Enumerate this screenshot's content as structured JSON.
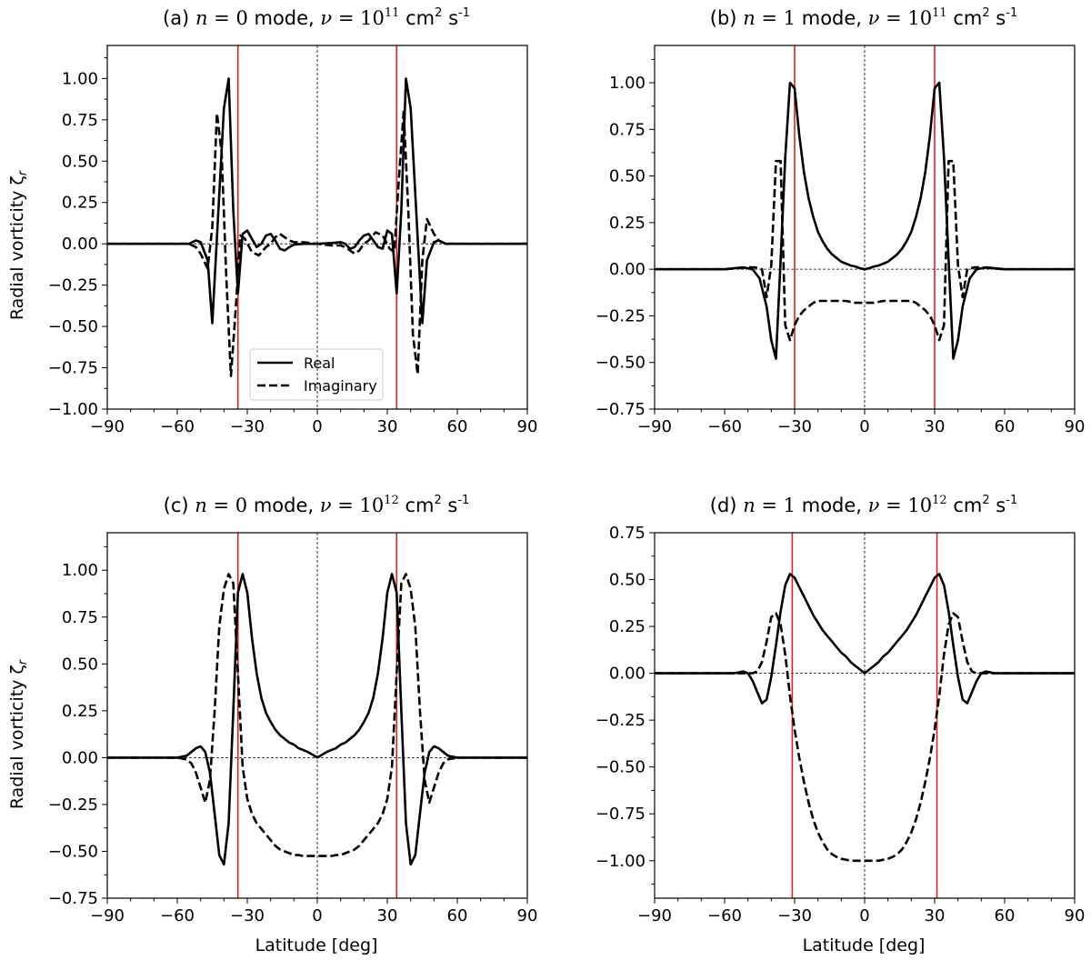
{
  "figure": {
    "xlabel": "Latitude [deg]",
    "ylabel": "Radial vorticity ζ",
    "ylabel_sub": "r",
    "legend": {
      "real": "Real",
      "imaginary": "Imaginary",
      "placement": "lower-center of panel (a)"
    },
    "colors": {
      "real": "#000000",
      "imaginary": "#000000",
      "critical_latitude": "#e0201b",
      "reference": "#000000"
    }
  },
  "chart_data": [
    {
      "type": "line",
      "panel_label": "(a)",
      "title": "(a) n = 0 mode, ν = 10^11 cm^2 s^-1",
      "title_parts": {
        "label": "(a)",
        "n": "0",
        "mode": "mode,",
        "nu_exp": "11"
      },
      "xlabel": "",
      "ylabel": "Radial vorticity ζr",
      "xlim": [
        -90,
        90
      ],
      "ylim": [
        -1.0,
        1.2
      ],
      "xticks": [
        -90,
        -60,
        -30,
        0,
        30,
        60,
        90
      ],
      "yticks": [
        -1.0,
        -0.75,
        -0.5,
        -0.25,
        0.0,
        0.25,
        0.5,
        0.75,
        1.0
      ],
      "ytick_labels": [
        "−1.00",
        "−0.75",
        "−0.50",
        "−0.25",
        "0.00",
        "0.25",
        "0.50",
        "0.75",
        "1.00"
      ],
      "vlines": [
        -34,
        34
      ],
      "series": [
        {
          "name": "Real",
          "style": "solid",
          "x": [
            -90,
            -60,
            -55,
            -52,
            -50,
            -47,
            -45,
            -42,
            -40,
            -38,
            -36,
            -34,
            -32,
            -30,
            -28,
            -26,
            -24,
            -22,
            -20,
            -18,
            -16,
            -14,
            -12,
            -10,
            -6,
            0,
            6,
            10,
            12,
            14,
            16,
            18,
            20,
            22,
            24,
            26,
            28,
            30,
            32,
            34,
            36,
            38,
            40,
            42,
            45,
            47,
            50,
            52,
            55,
            60,
            90
          ],
          "y": [
            0,
            0,
            0.0,
            0.02,
            0.01,
            -0.1,
            -0.48,
            0.3,
            0.82,
            1.0,
            0.2,
            -0.3,
            0.06,
            0.08,
            0.03,
            -0.02,
            0.0,
            0.05,
            0.06,
            0.02,
            -0.03,
            -0.04,
            -0.02,
            -0.005,
            0.0,
            0.0,
            0.005,
            0.01,
            0.0,
            -0.03,
            -0.02,
            0.02,
            0.05,
            0.06,
            0.02,
            -0.02,
            -0.03,
            0.08,
            0.06,
            -0.3,
            0.2,
            1.0,
            0.82,
            0.3,
            -0.48,
            -0.1,
            0.01,
            0.02,
            0.0,
            0,
            0
          ]
        },
        {
          "name": "Imaginary",
          "style": "dashed",
          "x": [
            -90,
            -60,
            -55,
            -52,
            -50,
            -47,
            -45,
            -43,
            -41,
            -39,
            -37,
            -35,
            -33,
            -31,
            -28,
            -25,
            -22,
            -20,
            -18,
            -16,
            -14,
            -12,
            -10,
            -6,
            0,
            6,
            10,
            12,
            14,
            16,
            18,
            20,
            22,
            25,
            28,
            31,
            33,
            35,
            37,
            39,
            41,
            43,
            45,
            47,
            50,
            52,
            55,
            60,
            90
          ],
          "y": [
            0,
            0,
            0.0,
            -0.02,
            -0.06,
            -0.15,
            0.1,
            0.79,
            0.55,
            -0.2,
            -0.8,
            -0.4,
            0.05,
            0.03,
            -0.05,
            -0.07,
            -0.02,
            0.0,
            0.04,
            0.06,
            0.04,
            0.02,
            0.01,
            0.01,
            0.0,
            -0.01,
            -0.01,
            -0.02,
            -0.04,
            -0.06,
            -0.04,
            0.0,
            0.02,
            0.07,
            0.05,
            -0.03,
            -0.05,
            0.4,
            0.8,
            0.2,
            -0.55,
            -0.79,
            -0.1,
            0.15,
            0.06,
            0.02,
            0.0,
            0,
            0
          ]
        }
      ]
    },
    {
      "type": "line",
      "panel_label": "(b)",
      "title": "(b) n = 1 mode, ν = 10^11 cm^2 s^-1",
      "title_parts": {
        "label": "(b)",
        "n": "1",
        "mode": "mode,",
        "nu_exp": "11"
      },
      "xlabel": "",
      "ylabel": "",
      "xlim": [
        -90,
        90
      ],
      "ylim": [
        -0.75,
        1.2
      ],
      "xticks": [
        -90,
        -60,
        -30,
        0,
        30,
        60,
        90
      ],
      "yticks": [
        -0.75,
        -0.5,
        -0.25,
        0.0,
        0.25,
        0.5,
        0.75,
        1.0
      ],
      "ytick_labels": [
        "−0.75",
        "−0.50",
        "−0.25",
        "0.00",
        "0.25",
        "0.50",
        "0.75",
        "1.00"
      ],
      "vlines": [
        -30,
        30
      ],
      "series": [
        {
          "name": "Real",
          "style": "solid",
          "x": [
            -90,
            -60,
            -52,
            -48,
            -45,
            -42,
            -40,
            -38,
            -36,
            -34,
            -32,
            -30,
            -28,
            -26,
            -24,
            -22,
            -20,
            -18,
            -16,
            -14,
            -12,
            -10,
            -8,
            -6,
            -4,
            -2,
            0,
            2,
            4,
            6,
            8,
            10,
            12,
            14,
            16,
            18,
            20,
            22,
            24,
            26,
            28,
            30,
            32,
            34,
            36,
            38,
            40,
            42,
            45,
            48,
            52,
            60,
            90
          ],
          "y": [
            0,
            0,
            0.01,
            0.0,
            -0.05,
            -0.2,
            -0.38,
            -0.48,
            0.05,
            0.6,
            1.0,
            0.97,
            0.72,
            0.52,
            0.38,
            0.28,
            0.2,
            0.15,
            0.11,
            0.08,
            0.06,
            0.04,
            0.03,
            0.02,
            0.015,
            0.005,
            0.0,
            0.005,
            0.015,
            0.02,
            0.03,
            0.04,
            0.06,
            0.08,
            0.11,
            0.15,
            0.2,
            0.28,
            0.38,
            0.52,
            0.72,
            0.97,
            1.0,
            0.6,
            0.05,
            -0.48,
            -0.38,
            -0.2,
            -0.05,
            0.0,
            0.01,
            0,
            0
          ]
        },
        {
          "name": "Imaginary",
          "style": "dashed",
          "x": [
            -90,
            -60,
            -50,
            -47,
            -44,
            -42,
            -40,
            -38,
            -36,
            -34,
            -32,
            -30,
            -28,
            -26,
            -24,
            -22,
            -20,
            -16,
            -12,
            -8,
            -4,
            0,
            4,
            8,
            12,
            16,
            20,
            22,
            24,
            26,
            28,
            30,
            32,
            34,
            36,
            38,
            40,
            42,
            44,
            47,
            50,
            60,
            90
          ],
          "y": [
            0,
            0,
            0.01,
            0.01,
            0.0,
            -0.15,
            0.02,
            0.58,
            0.58,
            -0.3,
            -0.38,
            -0.3,
            -0.25,
            -0.22,
            -0.2,
            -0.18,
            -0.17,
            -0.17,
            -0.17,
            -0.17,
            -0.18,
            -0.18,
            -0.18,
            -0.17,
            -0.17,
            -0.17,
            -0.17,
            -0.18,
            -0.2,
            -0.22,
            -0.25,
            -0.3,
            -0.38,
            -0.3,
            0.58,
            0.58,
            0.02,
            -0.15,
            0.0,
            0.01,
            0.01,
            0,
            0
          ]
        }
      ]
    },
    {
      "type": "line",
      "panel_label": "(c)",
      "title": "(c) n = 0 mode, ν = 10^12 cm^2 s^-1",
      "title_parts": {
        "label": "(c)",
        "n": "0",
        "mode": "mode,",
        "nu_exp": "12"
      },
      "xlabel": "Latitude [deg]",
      "ylabel": "Radial vorticity ζr",
      "xlim": [
        -90,
        90
      ],
      "ylim": [
        -0.75,
        1.2
      ],
      "xticks": [
        -90,
        -60,
        -30,
        0,
        30,
        60,
        90
      ],
      "yticks": [
        -0.75,
        -0.5,
        -0.25,
        0.0,
        0.25,
        0.5,
        0.75,
        1.0
      ],
      "ytick_labels": [
        "−0.75",
        "−0.50",
        "−0.25",
        "0.00",
        "0.25",
        "0.50",
        "0.75",
        "1.00"
      ],
      "vlines": [
        -34,
        34
      ],
      "series": [
        {
          "name": "Real",
          "style": "solid",
          "x": [
            -90,
            -60,
            -56,
            -54,
            -52,
            -50,
            -48,
            -46,
            -44,
            -42,
            -40,
            -38,
            -36,
            -34,
            -32,
            -30,
            -28,
            -26,
            -24,
            -22,
            -20,
            -18,
            -16,
            -14,
            -12,
            -10,
            -8,
            -6,
            -4,
            -2,
            0,
            2,
            4,
            6,
            8,
            10,
            12,
            14,
            16,
            18,
            20,
            22,
            24,
            26,
            28,
            30,
            32,
            34,
            36,
            38,
            40,
            42,
            44,
            46,
            48,
            50,
            52,
            54,
            56,
            60,
            90
          ],
          "y": [
            0,
            0,
            0.01,
            0.03,
            0.05,
            0.06,
            0.03,
            -0.08,
            -0.3,
            -0.52,
            -0.57,
            -0.35,
            0.25,
            0.88,
            0.98,
            0.88,
            0.64,
            0.45,
            0.32,
            0.24,
            0.19,
            0.15,
            0.12,
            0.1,
            0.08,
            0.07,
            0.05,
            0.04,
            0.03,
            0.015,
            0.0,
            0.015,
            0.03,
            0.04,
            0.05,
            0.07,
            0.08,
            0.1,
            0.12,
            0.15,
            0.19,
            0.24,
            0.32,
            0.45,
            0.64,
            0.88,
            0.98,
            0.88,
            0.25,
            -0.35,
            -0.57,
            -0.52,
            -0.3,
            -0.08,
            0.03,
            0.06,
            0.05,
            0.03,
            0.01,
            0,
            0
          ]
        },
        {
          "name": "Imaginary",
          "style": "dashed",
          "x": [
            -90,
            -60,
            -56,
            -54,
            -52,
            -50,
            -48,
            -46,
            -44,
            -42,
            -40,
            -38,
            -36,
            -34,
            -32,
            -30,
            -28,
            -26,
            -24,
            -22,
            -20,
            -18,
            -16,
            -14,
            -12,
            -10,
            -8,
            -6,
            -4,
            -2,
            0,
            2,
            4,
            6,
            8,
            10,
            12,
            14,
            16,
            18,
            20,
            22,
            24,
            26,
            28,
            30,
            32,
            34,
            36,
            38,
            40,
            42,
            44,
            46,
            48,
            50,
            52,
            54,
            56,
            60,
            90
          ],
          "y": [
            0,
            0,
            -0.01,
            -0.03,
            -0.08,
            -0.16,
            -0.24,
            -0.12,
            0.25,
            0.7,
            0.9,
            0.98,
            0.93,
            0.45,
            -0.05,
            -0.22,
            -0.3,
            -0.35,
            -0.38,
            -0.41,
            -0.44,
            -0.47,
            -0.49,
            -0.5,
            -0.51,
            -0.52,
            -0.52,
            -0.525,
            -0.525,
            -0.525,
            -0.525,
            -0.525,
            -0.525,
            -0.525,
            -0.52,
            -0.52,
            -0.51,
            -0.5,
            -0.49,
            -0.47,
            -0.44,
            -0.41,
            -0.38,
            -0.35,
            -0.3,
            -0.22,
            -0.05,
            0.45,
            0.93,
            0.98,
            0.9,
            0.7,
            0.25,
            -0.12,
            -0.24,
            -0.16,
            -0.08,
            -0.03,
            -0.01,
            0,
            0
          ]
        }
      ]
    },
    {
      "type": "line",
      "panel_label": "(d)",
      "title": "(d) n = 1 mode, ν = 10^12 cm^2 s^-1",
      "title_parts": {
        "label": "(d)",
        "n": "1",
        "mode": "mode,",
        "nu_exp": "12"
      },
      "xlabel": "Latitude [deg]",
      "ylabel": "",
      "xlim": [
        -90,
        90
      ],
      "ylim": [
        -1.2,
        0.75
      ],
      "xticks": [
        -90,
        -60,
        -30,
        0,
        30,
        60,
        90
      ],
      "yticks": [
        -1.0,
        -0.75,
        -0.5,
        -0.25,
        0.0,
        0.25,
        0.5,
        0.75
      ],
      "ytick_labels": [
        "−1.00",
        "−0.75",
        "−0.50",
        "−0.25",
        "0.00",
        "0.25",
        "0.50",
        "0.75"
      ],
      "vlines": [
        -31,
        31
      ],
      "series": [
        {
          "name": "Real",
          "style": "solid",
          "x": [
            -90,
            -60,
            -56,
            -52,
            -50,
            -48,
            -46,
            -44,
            -42,
            -40,
            -38,
            -36,
            -34,
            -32,
            -30,
            -28,
            -26,
            -24,
            -22,
            -20,
            -18,
            -16,
            -14,
            -12,
            -10,
            -8,
            -6,
            -4,
            -2,
            0,
            2,
            4,
            6,
            8,
            10,
            12,
            14,
            16,
            18,
            20,
            22,
            24,
            26,
            28,
            30,
            32,
            34,
            36,
            38,
            40,
            42,
            44,
            46,
            48,
            50,
            52,
            56,
            60,
            90
          ],
          "y": [
            0,
            0,
            0.0,
            0.01,
            0.0,
            -0.04,
            -0.1,
            -0.16,
            -0.14,
            -0.02,
            0.15,
            0.33,
            0.47,
            0.53,
            0.51,
            0.46,
            0.41,
            0.36,
            0.31,
            0.27,
            0.23,
            0.2,
            0.17,
            0.14,
            0.11,
            0.09,
            0.06,
            0.04,
            0.02,
            0.0,
            0.02,
            0.04,
            0.06,
            0.09,
            0.11,
            0.14,
            0.17,
            0.2,
            0.23,
            0.27,
            0.31,
            0.36,
            0.41,
            0.46,
            0.51,
            0.53,
            0.47,
            0.33,
            0.15,
            -0.02,
            -0.14,
            -0.16,
            -0.1,
            -0.04,
            0.0,
            0.01,
            0.0,
            0,
            0
          ]
        },
        {
          "name": "Imaginary",
          "style": "dashed",
          "x": [
            -90,
            -60,
            -52,
            -48,
            -46,
            -44,
            -42,
            -40,
            -38,
            -36,
            -34,
            -32,
            -30,
            -28,
            -26,
            -24,
            -22,
            -20,
            -18,
            -16,
            -14,
            -12,
            -10,
            -8,
            -6,
            -4,
            -2,
            0,
            2,
            4,
            6,
            8,
            10,
            12,
            14,
            16,
            18,
            20,
            22,
            24,
            26,
            28,
            30,
            32,
            34,
            36,
            38,
            40,
            42,
            44,
            46,
            48,
            52,
            60,
            90
          ],
          "y": [
            0,
            0,
            0.0,
            0.0,
            0.01,
            0.06,
            0.17,
            0.3,
            0.32,
            0.26,
            0.1,
            -0.12,
            -0.3,
            -0.45,
            -0.58,
            -0.69,
            -0.78,
            -0.85,
            -0.9,
            -0.94,
            -0.965,
            -0.98,
            -0.99,
            -0.995,
            -1.0,
            -1.0,
            -1.0,
            -1.0,
            -1.0,
            -1.0,
            -1.0,
            -0.995,
            -0.99,
            -0.98,
            -0.965,
            -0.94,
            -0.9,
            -0.85,
            -0.78,
            -0.69,
            -0.58,
            -0.45,
            -0.3,
            -0.12,
            0.1,
            0.26,
            0.32,
            0.3,
            0.17,
            0.06,
            0.01,
            0.0,
            0.0,
            0,
            0
          ]
        }
      ]
    }
  ]
}
